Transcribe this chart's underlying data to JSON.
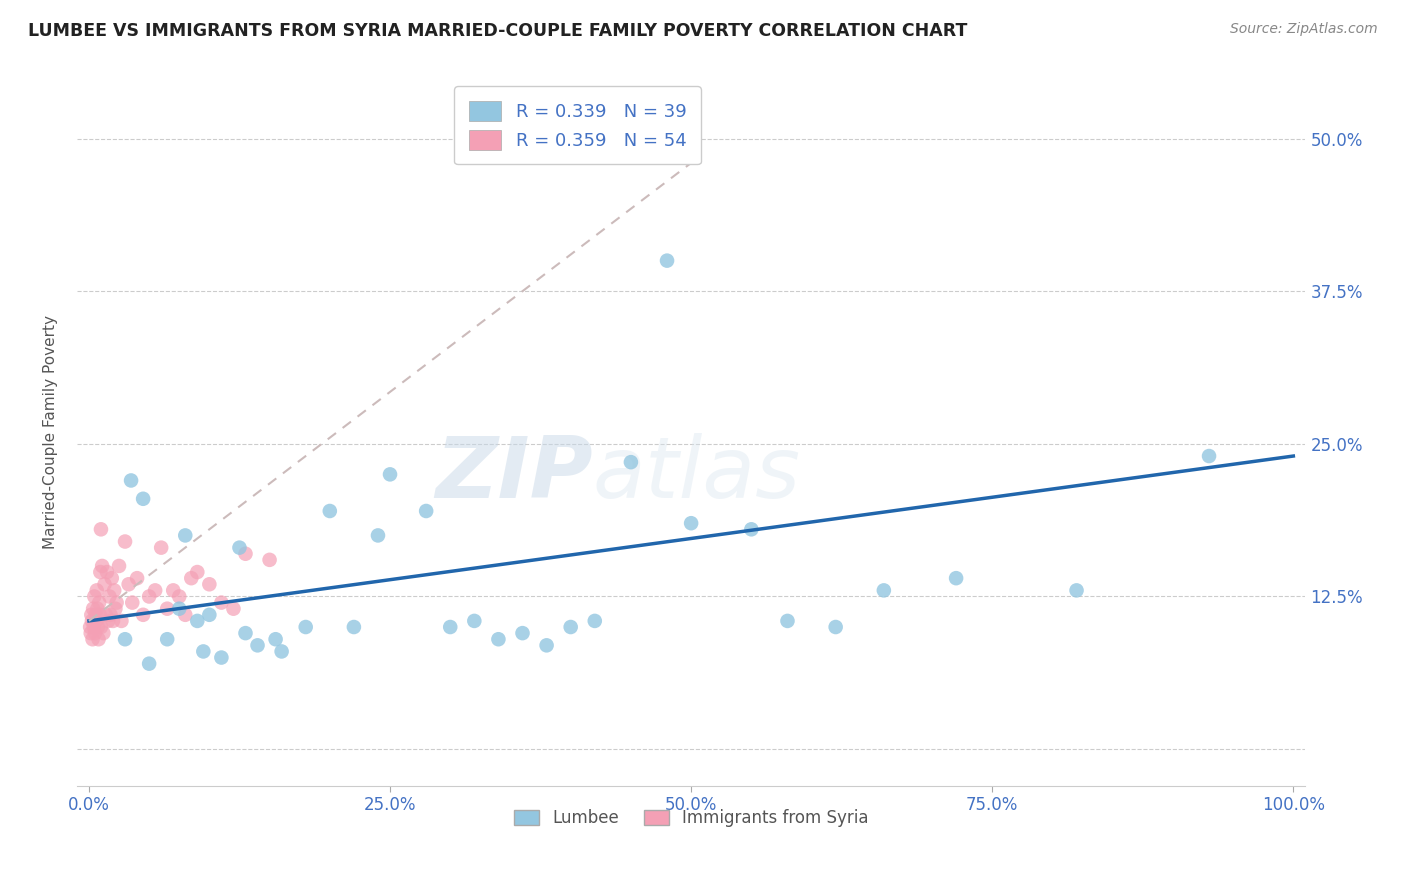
{
  "title": "LUMBEE VS IMMIGRANTS FROM SYRIA MARRIED-COUPLE FAMILY POVERTY CORRELATION CHART",
  "source": "Source: ZipAtlas.com",
  "ylabel": "Married-Couple Family Poverty",
  "xlim": [
    -1,
    101
  ],
  "ylim": [
    -3,
    55
  ],
  "xticks": [
    0,
    25,
    50,
    75,
    100
  ],
  "xticklabels": [
    "0.0%",
    "25.0%",
    "50.0%",
    "75.0%",
    "100.0%"
  ],
  "yticks": [
    0,
    12.5,
    25,
    37.5,
    50
  ],
  "yticklabels_right": [
    "",
    "12.5%",
    "25.0%",
    "37.5%",
    "50.0%"
  ],
  "watermark_zip": "ZIP",
  "watermark_atlas": "atlas",
  "lumbee_R": 0.339,
  "lumbee_N": 39,
  "syria_R": 0.359,
  "syria_N": 54,
  "lumbee_color": "#93c6e0",
  "syria_color": "#f4a0b5",
  "lumbee_line_color": "#2166ac",
  "syria_line_color": "#ccbbbb",
  "legend_lumbee": "Lumbee",
  "legend_syria": "Immigrants from Syria",
  "lumbee_x": [
    3.0,
    3.5,
    4.5,
    5.0,
    6.5,
    7.5,
    8.0,
    9.0,
    9.5,
    10.0,
    11.0,
    12.5,
    13.0,
    14.0,
    15.5,
    16.0,
    18.0,
    20.0,
    22.0,
    24.0,
    25.0,
    28.0,
    30.0,
    32.0,
    34.0,
    36.0,
    38.0,
    40.0,
    42.0,
    45.0,
    48.0,
    50.0,
    55.0,
    58.0,
    62.0,
    66.0,
    72.0,
    82.0,
    93.0
  ],
  "lumbee_y": [
    9.0,
    22.0,
    20.5,
    7.0,
    9.0,
    11.5,
    17.5,
    10.5,
    8.0,
    11.0,
    7.5,
    16.5,
    9.5,
    8.5,
    9.0,
    8.0,
    10.0,
    19.5,
    10.0,
    17.5,
    22.5,
    19.5,
    10.0,
    10.5,
    9.0,
    9.5,
    8.5,
    10.0,
    10.5,
    23.5,
    40.0,
    18.5,
    18.0,
    10.5,
    10.0,
    13.0,
    14.0,
    13.0,
    24.0
  ],
  "syria_x": [
    0.1,
    0.15,
    0.2,
    0.25,
    0.3,
    0.35,
    0.4,
    0.45,
    0.5,
    0.55,
    0.6,
    0.65,
    0.7,
    0.75,
    0.8,
    0.85,
    0.9,
    0.95,
    1.0,
    1.1,
    1.2,
    1.3,
    1.4,
    1.5,
    1.6,
    1.7,
    1.8,
    1.9,
    2.0,
    2.1,
    2.2,
    2.3,
    2.5,
    2.7,
    3.0,
    3.3,
    3.6,
    4.0,
    4.5,
    5.0,
    5.5,
    6.0,
    6.5,
    7.0,
    7.5,
    8.0,
    8.5,
    9.0,
    10.0,
    11.0,
    12.0,
    13.0,
    15.0,
    1.0
  ],
  "syria_y": [
    10.0,
    9.5,
    11.0,
    10.5,
    9.0,
    11.5,
    10.0,
    12.5,
    9.5,
    11.0,
    10.5,
    13.0,
    11.5,
    10.0,
    9.0,
    12.0,
    11.0,
    14.5,
    10.0,
    15.0,
    9.5,
    13.5,
    11.0,
    14.5,
    10.5,
    12.5,
    11.0,
    14.0,
    10.5,
    13.0,
    11.5,
    12.0,
    15.0,
    10.5,
    17.0,
    13.5,
    12.0,
    14.0,
    11.0,
    12.5,
    13.0,
    16.5,
    11.5,
    13.0,
    12.5,
    11.0,
    14.0,
    14.5,
    13.5,
    12.0,
    11.5,
    16.0,
    15.5,
    18.0
  ],
  "lumbee_line_x0": 0,
  "lumbee_line_x1": 100,
  "lumbee_line_y0": 10.5,
  "lumbee_line_y1": 24.0,
  "syria_line_x0": 0,
  "syria_line_x1": 50,
  "syria_line_y0": 10.5,
  "syria_line_y1": 48.0
}
